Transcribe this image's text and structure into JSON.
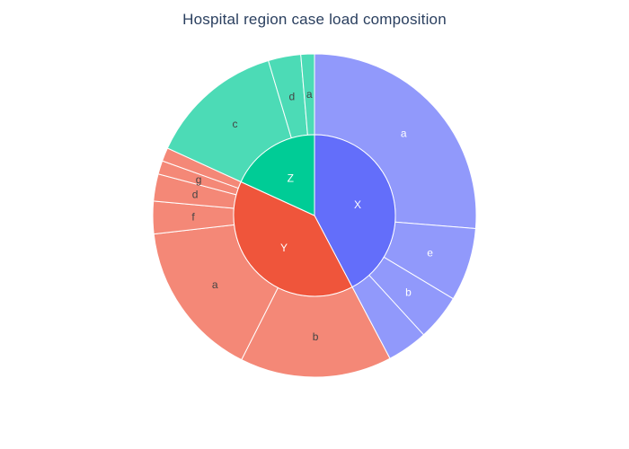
{
  "chart_data": {
    "type": "sunburst",
    "title": "Hospital region case load composition",
    "root_start_angle_deg": 90,
    "direction": "clockwise",
    "sort": "descending",
    "colors": {
      "X": "#636efa",
      "Y": "#ef553b",
      "Z": "#00cc96",
      "X_child": "#9199fb",
      "Y_child": "#f48877",
      "Z_child": "#4cdbb6",
      "border": "#ffffff",
      "label_dark": "#444444",
      "label_light": "#ffffff"
    },
    "groups": [
      {
        "name": "X",
        "value": 156,
        "children": [
          {
            "name": "a",
            "value": 97
          },
          {
            "name": "e",
            "value": 27
          },
          {
            "name": "b",
            "value": 17
          },
          {
            "name": "",
            "value": 15
          }
        ]
      },
      {
        "name": "Y",
        "value": 146,
        "children": [
          {
            "name": "b",
            "value": 56
          },
          {
            "name": "a",
            "value": 58
          },
          {
            "name": "f",
            "value": 12
          },
          {
            "name": "d",
            "value": 10
          },
          {
            "name": "g",
            "value": 5
          },
          {
            "name": "",
            "value": 5
          }
        ]
      },
      {
        "name": "Z",
        "value": 67,
        "children": [
          {
            "name": "c",
            "value": 50
          },
          {
            "name": "d",
            "value": 12
          },
          {
            "name": "a",
            "value": 5
          }
        ]
      }
    ]
  }
}
